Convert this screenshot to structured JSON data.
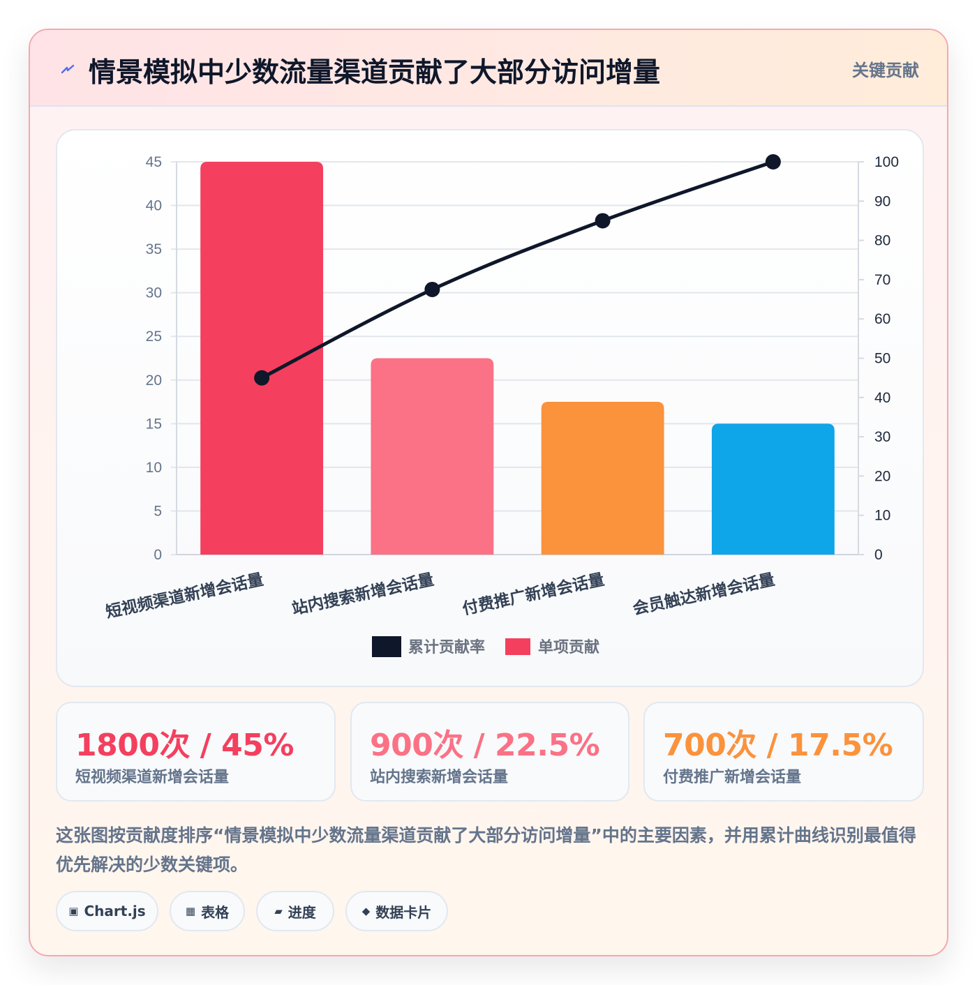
{
  "header": {
    "icon": "bolt-icon",
    "title": "情景模拟中少数流量渠道贡献了大部分访问增量",
    "badge": "关键贡献"
  },
  "chart_data": {
    "type": "bar",
    "subtype": "pareto",
    "title": "",
    "categories": [
      "短视频渠道新增会话量",
      "站内搜索新增会话量",
      "付费推广新增会话量",
      "会员触达新增会话量"
    ],
    "series": [
      {
        "name": "单项贡献",
        "kind": "bar",
        "axis": "left",
        "values": [
          45,
          22.5,
          17.5,
          15
        ],
        "colors": [
          "#f43f5e",
          "#fb7185",
          "#fb923c",
          "#0ea5e9"
        ]
      },
      {
        "name": "累计贡献率",
        "kind": "line",
        "axis": "right",
        "values": [
          45,
          67.5,
          85,
          100
        ],
        "color": "#0f172a"
      }
    ],
    "y_left": {
      "min": 0,
      "max": 45,
      "ticks": [
        0,
        5,
        10,
        15,
        20,
        25,
        30,
        35,
        40,
        45
      ]
    },
    "y_right": {
      "min": 0,
      "max": 100,
      "ticks": [
        0,
        10,
        20,
        30,
        40,
        50,
        60,
        70,
        80,
        90,
        100
      ]
    },
    "grid": true,
    "legend": {
      "position": "bottom",
      "items": [
        {
          "label": "累计贡献率",
          "color": "#0f172a"
        },
        {
          "label": "单项贡献",
          "color": "#f43f5e"
        }
      ]
    }
  },
  "stats": [
    {
      "value": "1800次 / 45%",
      "label": "短视频渠道新增会话量",
      "color": "#f43f5e"
    },
    {
      "value": "900次 / 22.5%",
      "label": "站内搜索新增会话量",
      "color": "#fb7185"
    },
    {
      "value": "700次 / 17.5%",
      "label": "付费推广新增会话量",
      "color": "#fb923c"
    }
  ],
  "description": "这张图按贡献度排序“情景模拟中少数流量渠道贡献了大部分访问增量”中的主要因素，并用累计曲线识别最值得优先解决的少数关键项。",
  "chips": [
    {
      "icon": "▣",
      "icon_name": "chart-icon",
      "label": "Chart.js"
    },
    {
      "icon": "▦",
      "icon_name": "table-icon",
      "label": "表格"
    },
    {
      "icon": "▰",
      "icon_name": "progress-icon",
      "label": "进度"
    },
    {
      "icon": "◆",
      "icon_name": "diamond-icon",
      "label": "数据卡片"
    }
  ]
}
